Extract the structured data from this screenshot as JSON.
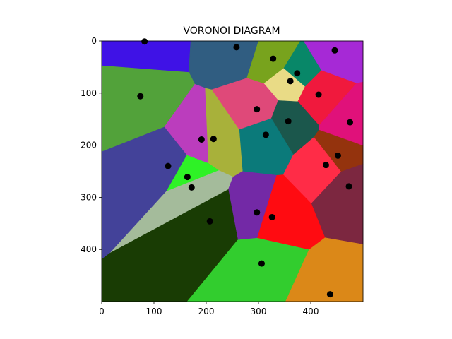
{
  "chart_data": {
    "type": "voronoi",
    "title": "VORONOI DIAGRAM",
    "xlim": [
      0,
      500
    ],
    "ylim": [
      500,
      0
    ],
    "x_ticks": [
      0,
      100,
      200,
      300,
      400
    ],
    "y_ticks": [
      0,
      100,
      200,
      300,
      400
    ],
    "grid": false,
    "sites": [
      {
        "x": 82,
        "y": 1,
        "color": "#3f12e6"
      },
      {
        "x": 258,
        "y": 12,
        "color": "#305d81"
      },
      {
        "x": 328,
        "y": 34,
        "color": "#78a31d"
      },
      {
        "x": 446,
        "y": 18,
        "color": "#a629d6"
      },
      {
        "x": 374,
        "y": 62,
        "color": "#088768"
      },
      {
        "x": 361,
        "y": 77,
        "color": "#e9db86"
      },
      {
        "x": 74,
        "y": 106,
        "color": "#52a23a"
      },
      {
        "x": 415,
        "y": 103,
        "color": "#f0193d"
      },
      {
        "x": 297,
        "y": 131,
        "color": "#df4979"
      },
      {
        "x": 357,
        "y": 154,
        "color": "#1b574c"
      },
      {
        "x": 475,
        "y": 156,
        "color": "#e0117a"
      },
      {
        "x": 314,
        "y": 180,
        "color": "#0b7a7a"
      },
      {
        "x": 191,
        "y": 189,
        "color": "#bb3dbd"
      },
      {
        "x": 214,
        "y": 188,
        "color": "#a8b13a"
      },
      {
        "x": 452,
        "y": 220,
        "color": "#94330d"
      },
      {
        "x": 127,
        "y": 240,
        "color": "#434299"
      },
      {
        "x": 429,
        "y": 238,
        "color": "#ff2c47"
      },
      {
        "x": 164,
        "y": 261,
        "color": "#2ef226"
      },
      {
        "x": 172,
        "y": 281,
        "color": "#a4bb9b"
      },
      {
        "x": 473,
        "y": 279,
        "color": "#7c2740"
      },
      {
        "x": 297,
        "y": 329,
        "color": "#7329a6"
      },
      {
        "x": 326,
        "y": 338,
        "color": "#ff0b11"
      },
      {
        "x": 207,
        "y": 346,
        "color": "#193c04"
      },
      {
        "x": 306,
        "y": 427,
        "color": "#32cd2e"
      },
      {
        "x": 437,
        "y": 486,
        "color": "#db8818"
      }
    ]
  }
}
